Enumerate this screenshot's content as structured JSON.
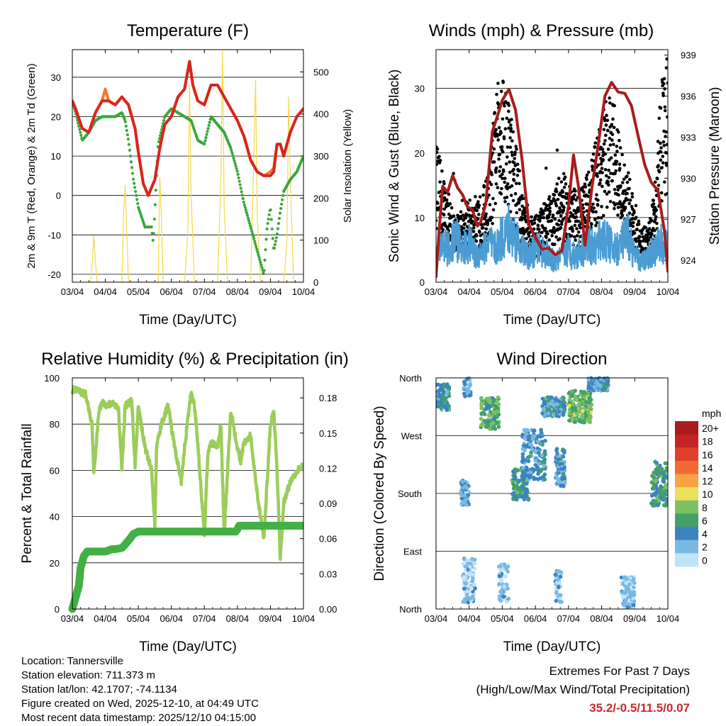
{
  "chart_data": [
    {
      "type": "line",
      "title": "Temperature (F)",
      "xlabel": "Time (Day/UTC)",
      "ylabel": "2m & 9m T (Red, Orange) & 2m Td (Green)",
      "y2label": "Solar Insolation (Yellow)",
      "x_ticks": [
        "03/04",
        "04/04",
        "05/04",
        "06/04",
        "07/04",
        "08/04",
        "09/04",
        "10/04"
      ],
      "ylim": [
        -22,
        37
      ],
      "y_ticks": [
        -20,
        -10,
        0,
        10,
        20,
        30
      ],
      "y2lim": [
        0,
        553
      ],
      "y2_ticks": [
        0,
        100,
        200,
        300,
        400,
        500
      ],
      "series": [
        {
          "name": "2m T",
          "color": "#d7261e",
          "x": [
            0,
            0.1,
            0.3,
            0.5,
            0.7,
            0.9,
            1.1,
            1.3,
            1.5,
            1.7,
            1.9,
            2.0,
            2.15,
            2.3,
            2.5,
            2.65,
            2.8,
            3.0,
            3.2,
            3.4,
            3.55,
            3.65,
            3.8,
            4.0,
            4.2,
            4.4,
            4.6,
            4.8,
            5.0,
            5.2,
            5.4,
            5.6,
            5.8,
            6.0,
            6.1,
            6.2,
            6.3,
            6.4,
            6.6,
            6.8,
            7.0
          ],
          "values": [
            24,
            22,
            17,
            16,
            21,
            24,
            24,
            23,
            25,
            23,
            17,
            11,
            3,
            0,
            4,
            12,
            18,
            20,
            25,
            27,
            34,
            28,
            24,
            23,
            28,
            28,
            25,
            22,
            19,
            15,
            9,
            6,
            5,
            5,
            6,
            13,
            13,
            10,
            16,
            20,
            22
          ]
        },
        {
          "name": "9m T",
          "color": "#f07a2a",
          "x": [
            0,
            0.1,
            0.3,
            0.5,
            0.7,
            0.9,
            1.0,
            1.1,
            1.3,
            1.5,
            1.7,
            1.9,
            2.0,
            2.15,
            2.3,
            2.5,
            2.65,
            2.8,
            3.0,
            3.2,
            3.4,
            3.55,
            3.65,
            3.8,
            4.0,
            4.2,
            4.4,
            4.6,
            4.8,
            5.0,
            5.2,
            5.4,
            5.6,
            5.8,
            6.0,
            6.1,
            6.2,
            6.3,
            6.4,
            6.6,
            6.8,
            7.0
          ],
          "values": [
            24,
            22,
            17,
            16,
            21,
            24,
            27,
            24,
            23,
            25,
            23,
            17,
            11,
            3,
            0,
            4,
            12,
            18,
            20,
            25,
            27,
            34,
            28,
            24,
            23,
            28,
            28,
            25,
            22,
            19,
            15,
            9,
            6,
            5,
            6,
            7,
            13,
            13,
            10,
            16,
            20,
            22
          ]
        },
        {
          "name": "2m Td",
          "color": "#3aa63a",
          "x": [
            0,
            0.1,
            0.3,
            0.5,
            0.7,
            0.9,
            1.1,
            1.3,
            1.5,
            1.6,
            1.7,
            1.85,
            2.0,
            2.2,
            2.4,
            2.45,
            2.6,
            2.8,
            3.0,
            3.2,
            3.4,
            3.6,
            3.8,
            4.0,
            4.2,
            4.4,
            4.6,
            4.8,
            5.0,
            5.2,
            5.4,
            5.6,
            5.8,
            5.9,
            6.0,
            6.1,
            6.2,
            6.3,
            6.4,
            6.6,
            6.8,
            7.0
          ],
          "values": [
            24,
            21,
            14,
            16,
            19,
            20,
            20,
            20,
            21,
            19,
            14,
            4,
            -3,
            -8,
            -8,
            -12,
            13,
            20,
            22,
            21,
            20,
            19,
            14,
            13,
            20,
            18,
            16,
            12,
            6,
            -2,
            -8,
            -14,
            -20,
            -8,
            -3,
            -14,
            -10,
            -4,
            1,
            4,
            6,
            10
          ]
        },
        {
          "name": "Solar Insolation",
          "color": "#f2d94a",
          "axis": "y2",
          "x": [
            0.55,
            0.6,
            0.65,
            0.7,
            0.75,
            1.5,
            1.55,
            1.6,
            1.65,
            1.7,
            2.4,
            2.6,
            2.65,
            2.7,
            2.75,
            3.4,
            3.5,
            3.55,
            3.6,
            3.7,
            4.4,
            4.5,
            4.55,
            4.6,
            4.7,
            5.4,
            5.5,
            5.55,
            5.6,
            5.7,
            6.4,
            6.5,
            6.55,
            6.6,
            6.7
          ],
          "values": [
            0,
            40,
            110,
            50,
            0,
            0,
            160,
            230,
            120,
            0,
            0,
            0,
            250,
            150,
            0,
            0,
            120,
            470,
            200,
            0,
            0,
            250,
            550,
            180,
            0,
            0,
            300,
            480,
            160,
            0,
            0,
            90,
            440,
            250,
            0
          ]
        }
      ]
    },
    {
      "type": "scatter",
      "title": "Winds (mph) & Pressure (mb)",
      "xlabel": "Time (Day/UTC)",
      "ylabel": "Sonic Wind & Gust (Blue, Black)",
      "y2label": "Station Pressure (Maroon)",
      "x_ticks": [
        "03/04",
        "04/04",
        "05/04",
        "06/04",
        "07/04",
        "08/04",
        "09/04",
        "10/04"
      ],
      "ylim": [
        0,
        36
      ],
      "y_ticks": [
        0,
        10,
        20,
        30
      ],
      "y2lim": [
        922.4,
        939.4
      ],
      "y2_ticks": [
        924,
        927,
        930,
        933,
        936,
        939
      ],
      "series": [
        {
          "name": "Sonic Wind",
          "color": "#4b9cd3",
          "x": [
            0,
            0.2,
            0.4,
            0.6,
            0.8,
            1.0,
            1.2,
            1.4,
            1.6,
            1.8,
            2.0,
            2.2,
            2.4,
            2.6,
            2.8,
            3.0,
            3.2,
            3.4,
            3.6,
            3.8,
            4.0,
            4.2,
            4.4,
            4.6,
            4.8,
            5.0,
            5.2,
            5.4,
            5.6,
            5.8,
            6.0,
            6.2,
            6.4,
            6.6,
            6.8,
            7.0
          ],
          "values": [
            4,
            6,
            5,
            7,
            5,
            6,
            4,
            5,
            6,
            5,
            7,
            8,
            7,
            5,
            4,
            5,
            5,
            4,
            3,
            4,
            5,
            4,
            5,
            6,
            5,
            7,
            6,
            5,
            6,
            7,
            4,
            3,
            4,
            5,
            6,
            5
          ]
        },
        {
          "name": "Gust",
          "color": "#000000",
          "x": [
            0,
            0.2,
            0.4,
            0.6,
            0.8,
            1.0,
            1.2,
            1.4,
            1.6,
            1.8,
            2.0,
            2.2,
            2.4,
            2.6,
            2.8,
            3.0,
            3.2,
            3.4,
            3.6,
            3.8,
            4.0,
            4.2,
            4.4,
            4.6,
            4.8,
            5.0,
            5.2,
            5.4,
            5.6,
            5.8,
            6.0,
            6.2,
            6.4,
            6.6,
            6.8,
            7.0
          ],
          "values": [
            15,
            12,
            9,
            7,
            8,
            9,
            8,
            10,
            12,
            20,
            24,
            20,
            15,
            10,
            8,
            7,
            8,
            9,
            10,
            12,
            11,
            10,
            10,
            12,
            15,
            18,
            20,
            19,
            14,
            12,
            8,
            6,
            6,
            10,
            22,
            25
          ]
        },
        {
          "name": "Station Pressure",
          "color": "#a81c1c",
          "axis": "y2",
          "x": [
            0,
            0.1,
            0.2,
            0.35,
            0.5,
            0.65,
            0.8,
            0.95,
            1.1,
            1.25,
            1.35,
            1.5,
            1.7,
            1.9,
            2.0,
            2.2,
            2.4,
            2.6,
            2.8,
            3.0,
            3.2,
            3.4,
            3.6,
            3.8,
            4.0,
            4.15,
            4.3,
            4.5,
            4.7,
            4.9,
            5.1,
            5.3,
            5.5,
            5.7,
            5.9,
            6.1,
            6.3,
            6.5,
            6.7,
            6.9,
            7.0
          ],
          "values": [
            922.8,
            926.4,
            929.4,
            929.0,
            930.2,
            929.3,
            928.8,
            927.9,
            927.7,
            926.5,
            926.8,
            928.1,
            933.4,
            934.9,
            935.7,
            936.5,
            935.0,
            931.3,
            926.6,
            925.7,
            924.8,
            924.9,
            924.4,
            924.7,
            928.0,
            931.7,
            929.4,
            925.1,
            929.2,
            932.5,
            936.0,
            937.0,
            936.3,
            936.2,
            935.3,
            933.1,
            931.0,
            929.7,
            929.1,
            926.1,
            923.2
          ]
        }
      ]
    },
    {
      "type": "line",
      "title": "Relative Humidity (%) & Precipitation (in)",
      "xlabel": "Time (Day/UTC)",
      "ylabel": "Percent & Total Rainfall",
      "x_ticks": [
        "03/04",
        "04/04",
        "05/04",
        "06/04",
        "07/04",
        "08/04",
        "09/04",
        "10/04"
      ],
      "ylim": [
        0,
        100
      ],
      "y_ticks": [
        0,
        20,
        40,
        60,
        80,
        100
      ],
      "y2lim": [
        0,
        0.197
      ],
      "y2_ticks": [
        "0.00",
        "0.03",
        "0.06",
        "0.09",
        "0.12",
        "0.15",
        "0.18"
      ],
      "series": [
        {
          "name": "Relative Humidity",
          "color": "#9ccc5a",
          "x": [
            0,
            0.2,
            0.4,
            0.6,
            0.65,
            0.8,
            0.9,
            1.0,
            1.2,
            1.4,
            1.5,
            1.6,
            1.8,
            1.9,
            2.0,
            2.2,
            2.4,
            2.5,
            2.55,
            2.7,
            2.9,
            3.1,
            3.3,
            3.4,
            3.6,
            3.7,
            3.8,
            4.0,
            4.1,
            4.2,
            4.4,
            4.5,
            4.6,
            4.8,
            5.0,
            5.1,
            5.2,
            5.4,
            5.6,
            5.8,
            6.0,
            6.1,
            6.2,
            6.3,
            6.4,
            6.6,
            6.8,
            7.0
          ],
          "values": [
            95,
            94,
            93,
            80,
            58,
            85,
            90,
            88,
            89,
            87,
            60,
            88,
            90,
            62,
            88,
            70,
            60,
            35,
            70,
            80,
            88,
            70,
            55,
            70,
            94,
            88,
            72,
            31,
            66,
            72,
            70,
            80,
            32,
            86,
            70,
            64,
            72,
            75,
            50,
            30,
            80,
            85,
            60,
            22,
            46,
            55,
            60,
            62
          ]
        },
        {
          "name": "Total Precipitation",
          "color": "#43b043",
          "axis": "y2",
          "x": [
            0,
            0.1,
            0.2,
            0.25,
            0.35,
            0.45,
            0.6,
            0.8,
            1.0,
            1.2,
            1.3,
            1.5,
            1.6,
            1.75,
            1.85,
            2.0,
            2.2,
            2.4,
            2.6,
            2.8,
            3.0,
            3.5,
            4.0,
            4.5,
            4.95,
            5.0,
            5.05,
            5.5,
            6.0,
            6.5,
            7.0
          ],
          "values": [
            0,
            0.01,
            0.02,
            0.035,
            0.045,
            0.049,
            0.049,
            0.049,
            0.049,
            0.051,
            0.051,
            0.052,
            0.055,
            0.06,
            0.064,
            0.066,
            0.066,
            0.066,
            0.066,
            0.066,
            0.066,
            0.066,
            0.066,
            0.066,
            0.066,
            0.068,
            0.071,
            0.071,
            0.071,
            0.071,
            0.071
          ]
        }
      ]
    },
    {
      "type": "scatter",
      "title": "Wind Direction",
      "xlabel": "Time (Day/UTC)",
      "ylabel": "Direction (Colored By Speed)",
      "x_ticks": [
        "03/04",
        "04/04",
        "05/04",
        "06/04",
        "07/04",
        "08/04",
        "09/04",
        "10/04"
      ],
      "y_ticks": [
        "North",
        "East",
        "South",
        "West",
        "North"
      ],
      "ylim": [
        0,
        360
      ],
      "clusters": [
        {
          "x": [
            0.0,
            0.4
          ],
          "dir": [
            310,
            350
          ],
          "speed": 5
        },
        {
          "x": [
            0.85,
            1.05
          ],
          "dir": [
            330,
            360
          ],
          "speed": 3
        },
        {
          "x": [
            1.35,
            1.9
          ],
          "dir": [
            280,
            330
          ],
          "speed": 7
        },
        {
          "x": [
            0.75,
            1.0
          ],
          "dir": [
            160,
            200
          ],
          "speed": 3
        },
        {
          "x": [
            0.8,
            1.2
          ],
          "dir": [
            10,
            80
          ],
          "speed": 2
        },
        {
          "x": [
            1.9,
            2.2
          ],
          "dir": [
            10,
            70
          ],
          "speed": 2
        },
        {
          "x": [
            2.3,
            2.8
          ],
          "dir": [
            170,
            220
          ],
          "speed": 6
        },
        {
          "x": [
            2.6,
            3.3
          ],
          "dir": [
            200,
            280
          ],
          "speed": 4
        },
        {
          "x": [
            3.2,
            3.9
          ],
          "dir": [
            300,
            330
          ],
          "speed": 4
        },
        {
          "x": [
            3.6,
            3.9
          ],
          "dir": [
            190,
            250
          ],
          "speed": 4
        },
        {
          "x": [
            3.6,
            3.8
          ],
          "dir": [
            10,
            60
          ],
          "speed": 2
        },
        {
          "x": [
            4.0,
            4.7
          ],
          "dir": [
            290,
            340
          ],
          "speed": 8
        },
        {
          "x": [
            4.6,
            5.2
          ],
          "dir": [
            340,
            360
          ],
          "speed": 4
        },
        {
          "x": [
            5.6,
            6.0
          ],
          "dir": [
            0,
            50
          ],
          "speed": 2
        },
        {
          "x": [
            6.5,
            7.0
          ],
          "dir": [
            160,
            230
          ],
          "speed": 6
        }
      ],
      "colorbar": {
        "label": "mph",
        "levels": [
          "20+",
          "18",
          "16",
          "14",
          "12",
          "10",
          "8",
          "6",
          "4",
          "2",
          "0"
        ],
        "colors": [
          "#a81c1c",
          "#c42424",
          "#e0402a",
          "#f06a32",
          "#f7a245",
          "#e8e05a",
          "#7cc061",
          "#42a06a",
          "#3b83c0",
          "#7ab8e4",
          "#bfe3f7"
        ]
      }
    }
  ],
  "info": {
    "location": "Location: Tannersville",
    "elevation": "Station elevation: 711.373 m",
    "latlon": "Station lat/lon: 42.1707; -74.1134",
    "created": "Figure created on Wed, 2025-12-10, at 04:49 UTC",
    "recent": "Most recent data timestamp: 2025/12/10 04:15:00"
  },
  "extremes": {
    "title": "Extremes For Past 7 Days",
    "subtitle": "(High/Low/Max Wind/Total Precipitation)",
    "values": "35.2/-0.5/11.5/0.07"
  }
}
